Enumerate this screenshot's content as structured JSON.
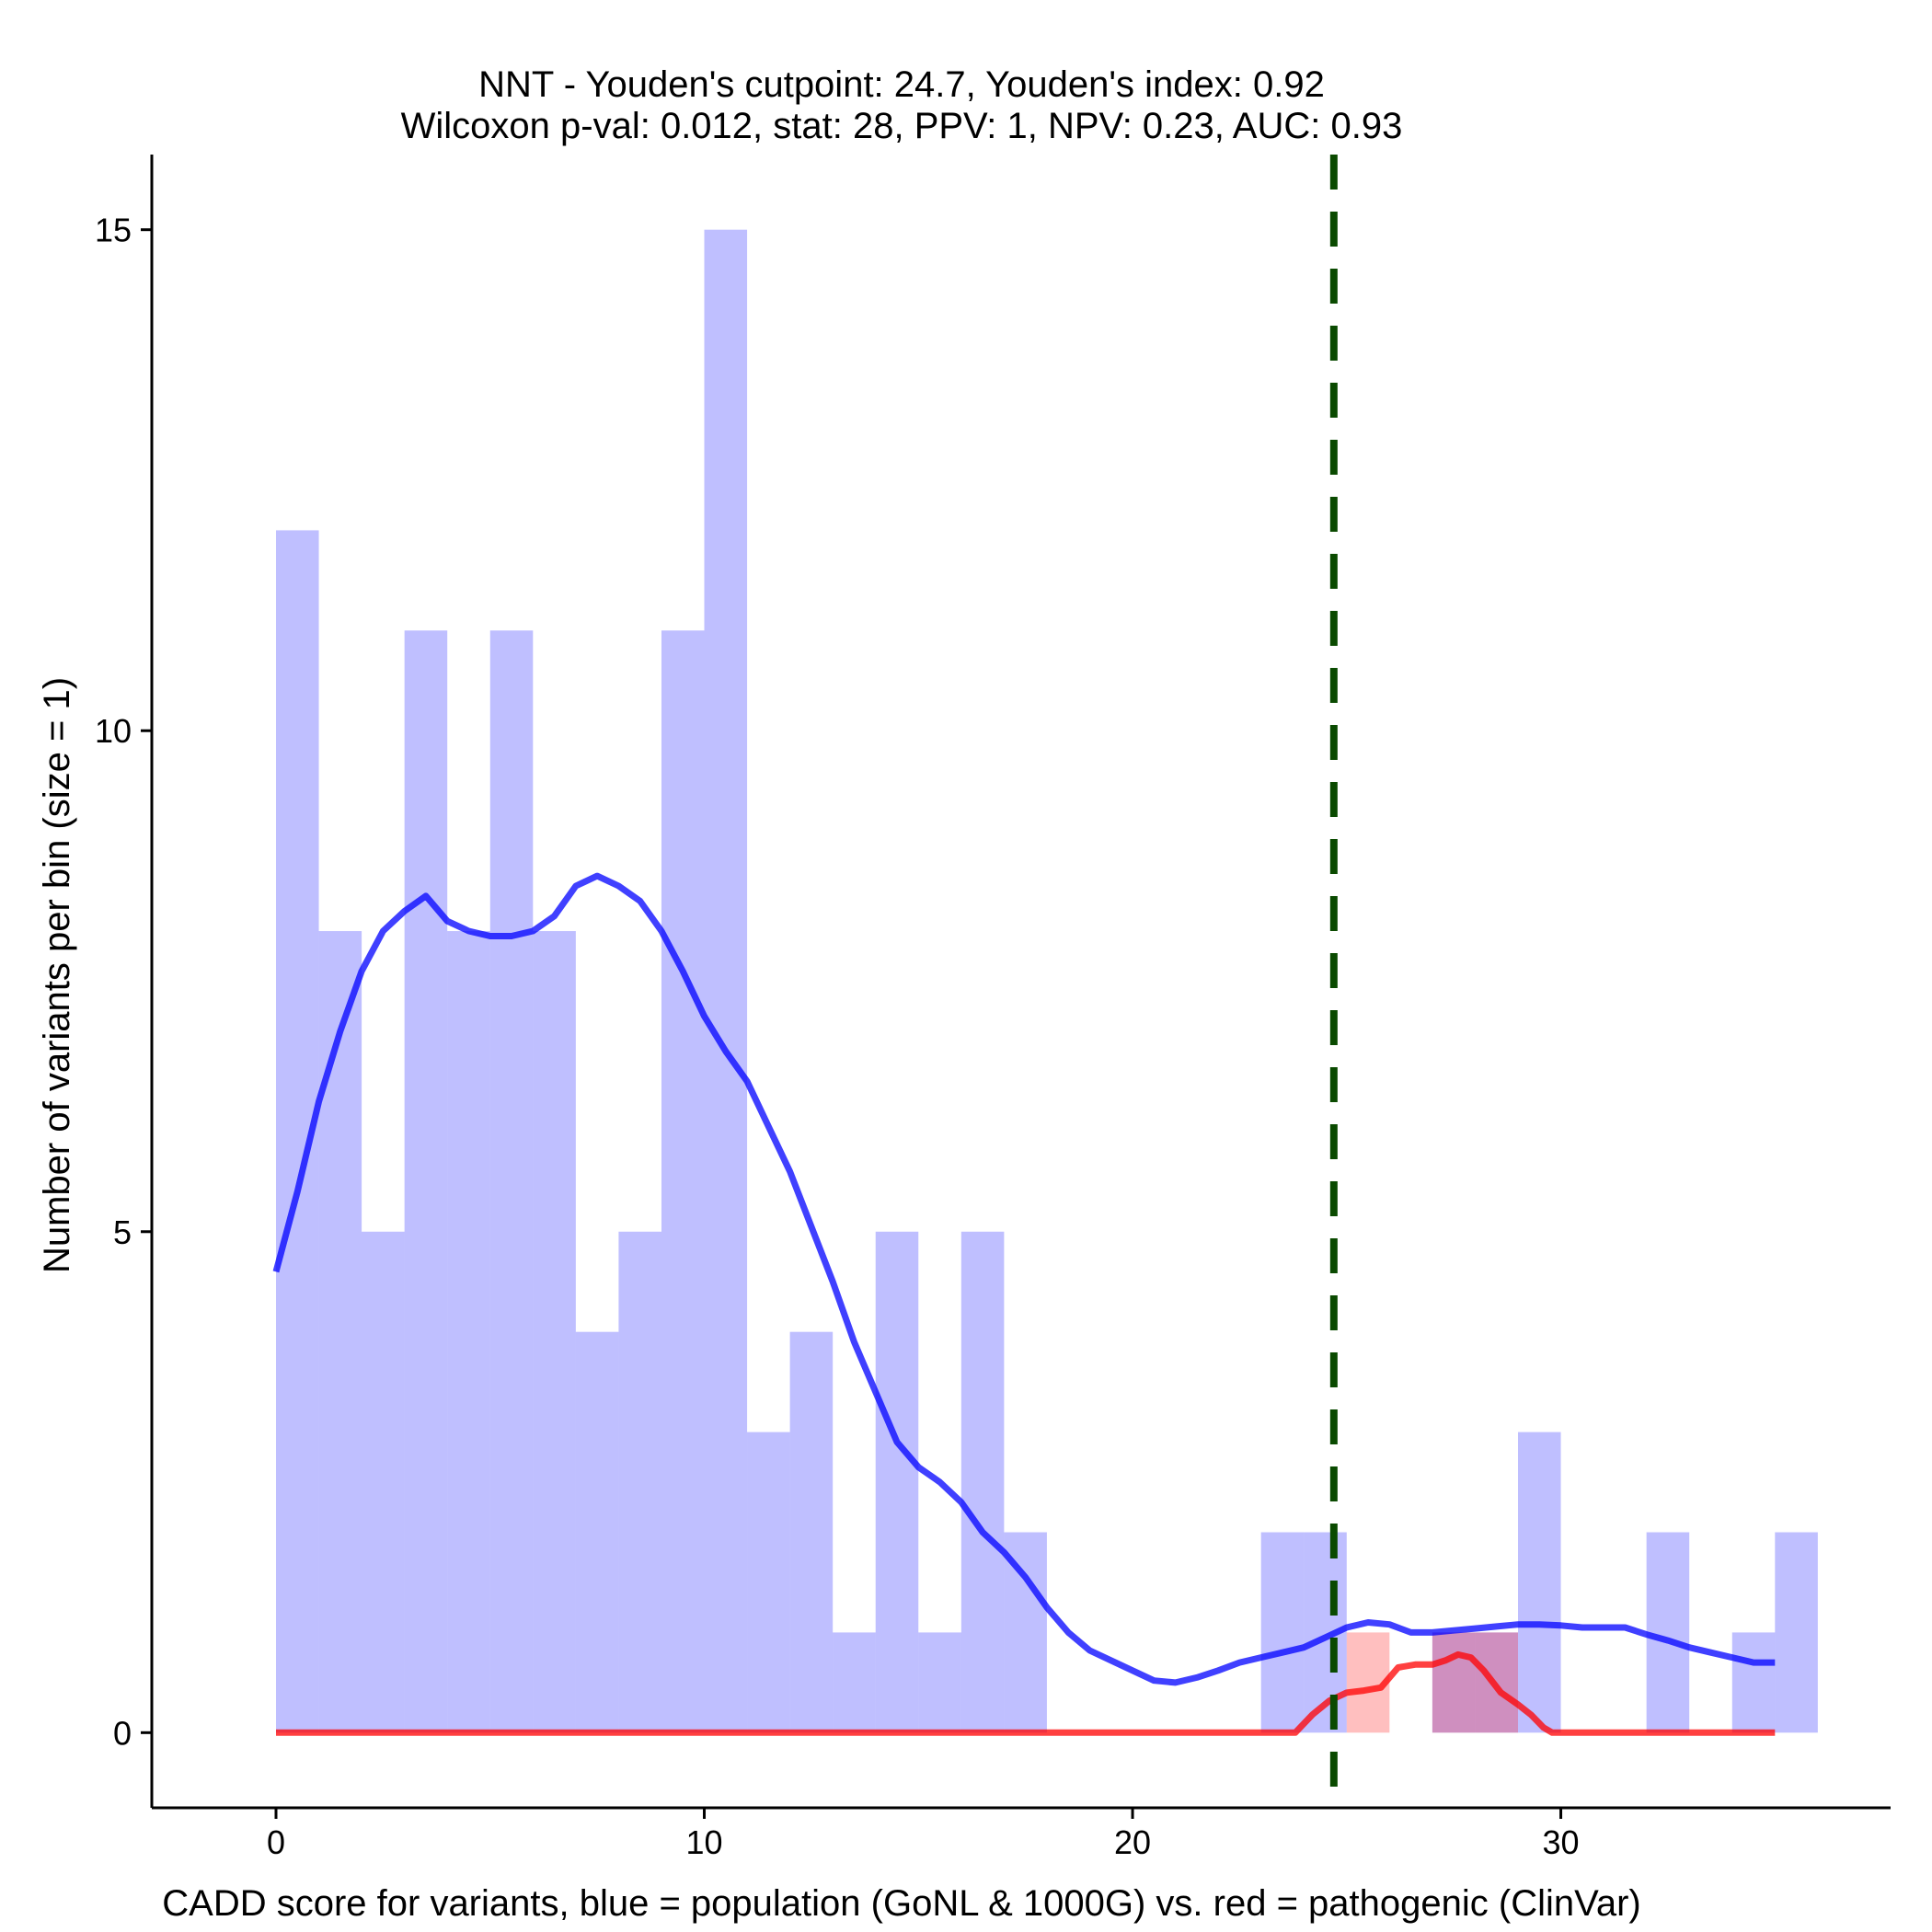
{
  "chart_data": {
    "type": "histogram",
    "title_line1": "NNT - Youden's cutpoint: 24.7, Youden's index: 0.92",
    "title_line2": "Wilcoxon p-val: 0.012, stat: 28, PPV: 1, NPV: 0.23, AUC: 0.93",
    "xlabel": "CADD score for variants, blue = population (GoNL & 1000G) vs. red = pathogenic (ClinVar)",
    "ylabel": "Number of variants per bin (size = 1)",
    "xlim": [
      -2.9,
      37.7
    ],
    "ylim": [
      -0.75,
      15.75
    ],
    "x_ticks": [
      0,
      10,
      20,
      30
    ],
    "y_ticks": [
      0,
      5,
      10,
      15
    ],
    "bin_width": 1,
    "cutpoint": 24.7,
    "series": [
      {
        "name": "population (GoNL & 1000G)",
        "color": "#0000ff",
        "fill_opacity": 0.25,
        "bins": [
          {
            "start": 0,
            "count": 12
          },
          {
            "start": 1,
            "count": 8
          },
          {
            "start": 2,
            "count": 5
          },
          {
            "start": 3,
            "count": 11
          },
          {
            "start": 4,
            "count": 8
          },
          {
            "start": 5,
            "count": 11
          },
          {
            "start": 6,
            "count": 8
          },
          {
            "start": 7,
            "count": 4
          },
          {
            "start": 8,
            "count": 5
          },
          {
            "start": 9,
            "count": 11
          },
          {
            "start": 10,
            "count": 15
          },
          {
            "start": 11,
            "count": 3
          },
          {
            "start": 12,
            "count": 4
          },
          {
            "start": 13,
            "count": 1
          },
          {
            "start": 14,
            "count": 5
          },
          {
            "start": 15,
            "count": 1
          },
          {
            "start": 16,
            "count": 5
          },
          {
            "start": 17,
            "count": 2
          },
          {
            "start": 23,
            "count": 2
          },
          {
            "start": 24,
            "count": 2
          },
          {
            "start": 27,
            "count": 1
          },
          {
            "start": 28,
            "count": 1
          },
          {
            "start": 29,
            "count": 3
          },
          {
            "start": 32,
            "count": 2
          },
          {
            "start": 34,
            "count": 1
          },
          {
            "start": 35,
            "count": 2
          }
        ],
        "density_line": {
          "x": [
            0,
            0.5,
            1,
            1.5,
            2,
            2.5,
            3,
            3.5,
            4,
            4.5,
            5,
            5.5,
            6,
            6.5,
            7,
            7.5,
            8,
            8.5,
            9,
            9.5,
            10,
            10.5,
            11,
            11.5,
            12,
            12.5,
            13,
            13.5,
            14,
            14.5,
            15,
            15.5,
            16,
            16.5,
            17,
            17.5,
            18,
            18.5,
            19,
            19.5,
            20,
            20.5,
            21,
            21.5,
            22,
            22.5,
            23,
            23.5,
            24,
            24.5,
            25,
            25.5,
            26,
            26.5,
            27,
            27.5,
            28,
            28.5,
            29,
            29.5,
            30,
            30.5,
            31,
            31.5,
            32,
            32.5,
            33,
            33.5,
            34,
            34.5,
            35
          ],
          "y": [
            4.6,
            5.4,
            6.3,
            7.0,
            7.6,
            8.0,
            8.2,
            8.35,
            8.1,
            8.0,
            7.95,
            7.95,
            8.0,
            8.15,
            8.45,
            8.55,
            8.45,
            8.3,
            8.0,
            7.6,
            7.15,
            6.8,
            6.5,
            6.05,
            5.6,
            5.05,
            4.5,
            3.9,
            3.4,
            2.9,
            2.65,
            2.5,
            2.3,
            2.0,
            1.8,
            1.55,
            1.25,
            1.0,
            0.82,
            0.72,
            0.62,
            0.52,
            0.5,
            0.55,
            0.62,
            0.7,
            0.75,
            0.8,
            0.85,
            0.95,
            1.05,
            1.1,
            1.08,
            1.0,
            1.0,
            1.02,
            1.04,
            1.06,
            1.08,
            1.08,
            1.07,
            1.05,
            1.05,
            1.05,
            0.98,
            0.92,
            0.85,
            0.8,
            0.75,
            0.7,
            0.7
          ]
        }
      },
      {
        "name": "pathogenic (ClinVar)",
        "color": "#ff0000",
        "fill_opacity": 0.25,
        "bins": [
          {
            "start": 25,
            "count": 1
          },
          {
            "start": 27,
            "count": 1
          },
          {
            "start": 28,
            "count": 1
          }
        ],
        "density_line": {
          "x": [
            0,
            23.5,
            23.8,
            24.2,
            24.6,
            25.0,
            25.4,
            25.8,
            26.2,
            26.6,
            27.0,
            27.3,
            27.6,
            27.9,
            28.2,
            28.6,
            29.0,
            29.3,
            29.6,
            29.8,
            30.0,
            35
          ],
          "y": [
            0,
            0,
            0,
            0.18,
            0.32,
            0.4,
            0.42,
            0.45,
            0.65,
            0.68,
            0.68,
            0.72,
            0.78,
            0.75,
            0.62,
            0.4,
            0.28,
            0.18,
            0.05,
            0,
            0,
            0
          ]
        }
      }
    ]
  }
}
